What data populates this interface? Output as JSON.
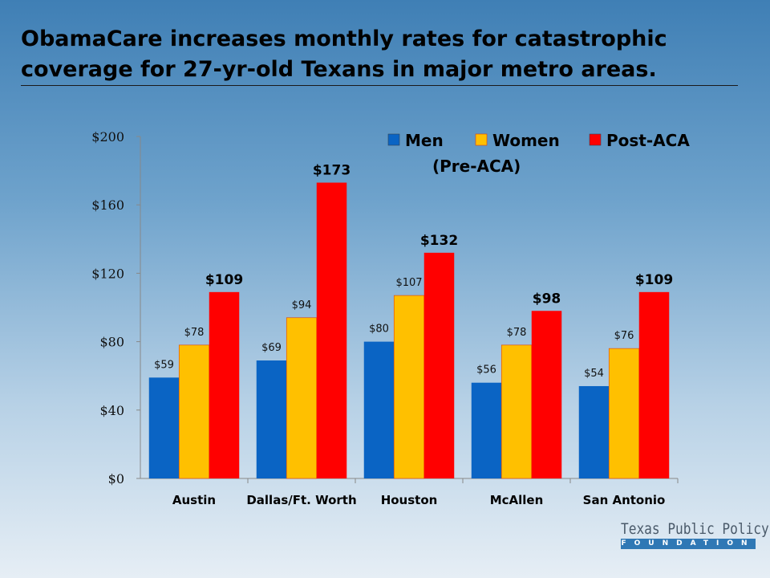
{
  "title": "ObamaCare increases monthly rates for catastrophic coverage for 27-yr-old Texans in major metro areas.",
  "logo": {
    "line1": "Texas Public Policy",
    "line2": "FOUNDATION"
  },
  "chart_data": {
    "type": "bar",
    "title": "",
    "categories": [
      "Austin",
      "Dallas/Ft. Worth",
      "Houston",
      "McAllen",
      "San Antonio"
    ],
    "series": [
      {
        "name": "Men",
        "values": [
          59,
          69,
          80,
          56,
          54
        ],
        "color": "#0a64c4",
        "labels": [
          "$59",
          "$69",
          "$80",
          "$56",
          "$54"
        ]
      },
      {
        "name": "Women",
        "values": [
          78,
          94,
          107,
          78,
          76
        ],
        "color": "#ffc000",
        "labels": [
          "$78",
          "$94",
          "$107",
          "$78",
          "$76"
        ]
      },
      {
        "name": "Post-ACA",
        "values": [
          109,
          173,
          132,
          98,
          109
        ],
        "color": "#ff0000",
        "labels": [
          "$109",
          "$173",
          "$132",
          "$98",
          "$109"
        ]
      }
    ],
    "legend_note": "(Pre-ACA)",
    "yticks": [
      "$0",
      "$40",
      "$80",
      "$120",
      "$160",
      "$200"
    ],
    "ytick_values": [
      0,
      40,
      80,
      120,
      160,
      200
    ],
    "ylim": [
      0,
      200
    ],
    "legend_position": "top-right",
    "grid": false
  }
}
